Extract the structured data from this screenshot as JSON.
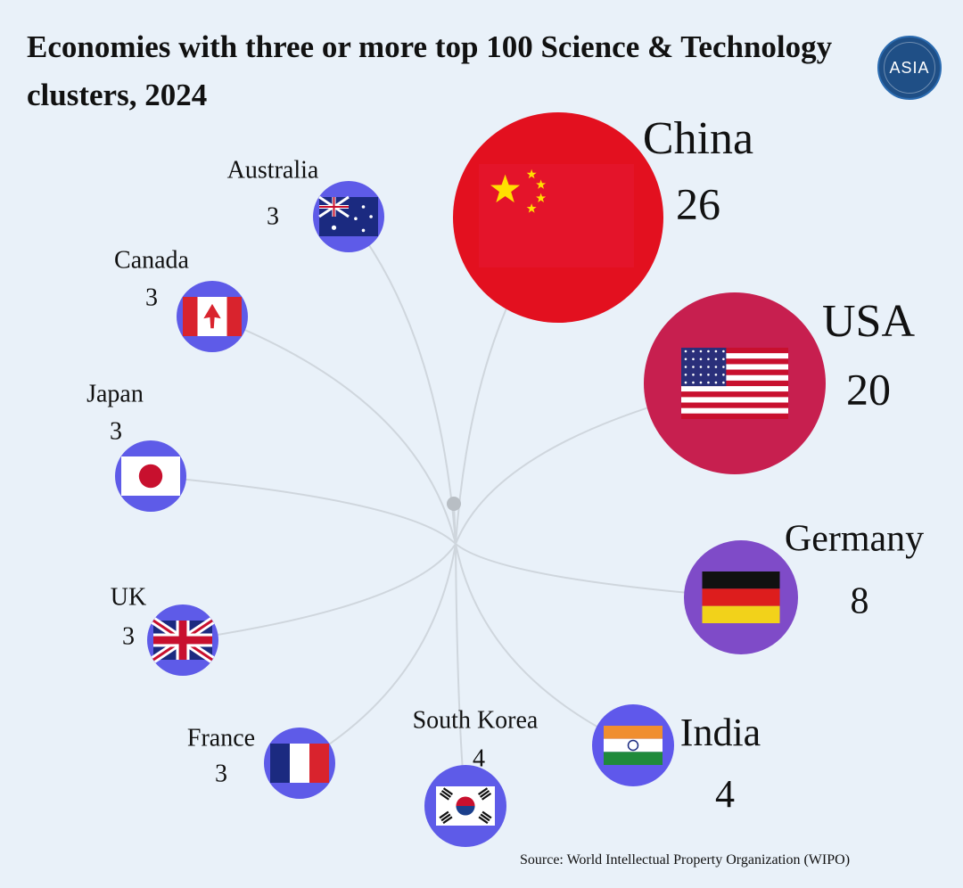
{
  "title": "Economies with three or more top 100 Science & Technology clusters, 2024",
  "logo": {
    "text": "ASIA",
    "icon": "asia-society-logo"
  },
  "source": "Source: World Intellectual Property Organization (WIPO)",
  "chart_data": {
    "type": "bubble",
    "title": "Economies with three or more top 100 Science & Technology clusters, 2024",
    "categories": [
      "China",
      "USA",
      "Germany",
      "India",
      "South Korea",
      "France",
      "UK",
      "Japan",
      "Canada",
      "Australia"
    ],
    "values": [
      26,
      20,
      8,
      4,
      4,
      3,
      3,
      3,
      3,
      3
    ],
    "colors": {
      "China": "#e3101f",
      "USA": "#c71f4f",
      "Germany": "#7f4bc8",
      "India": "#5f58eb",
      "small": "#5e5be8",
      "link": "#cfd6dd",
      "hub": "#b8bec4"
    },
    "flags": [
      "china-flag-icon",
      "usa-flag-icon",
      "germany-flag-icon",
      "india-flag-icon",
      "south-korea-flag-icon",
      "france-flag-icon",
      "uk-flag-icon",
      "japan-flag-icon",
      "canada-flag-icon",
      "australia-flag-icon"
    ]
  }
}
